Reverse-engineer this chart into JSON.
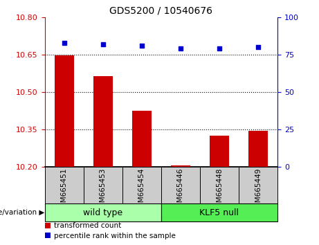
{
  "title": "GDS5200 / 10540676",
  "categories": [
    "GSM665451",
    "GSM665453",
    "GSM665454",
    "GSM665446",
    "GSM665448",
    "GSM665449"
  ],
  "bar_values": [
    10.648,
    10.565,
    10.425,
    10.205,
    10.325,
    10.345
  ],
  "scatter_values": [
    83,
    82,
    81,
    79,
    79,
    80
  ],
  "ylim_left": [
    10.2,
    10.8
  ],
  "ylim_right": [
    0,
    100
  ],
  "yticks_left": [
    10.2,
    10.35,
    10.5,
    10.65,
    10.8
  ],
  "yticks_right": [
    0,
    25,
    50,
    75,
    100
  ],
  "bar_color": "#cc0000",
  "scatter_color": "#0000cc",
  "bar_bottom": 10.2,
  "grid_values": [
    10.35,
    10.5,
    10.65
  ],
  "group1_label": "wild type",
  "group2_label": "KLF5 null",
  "group1_color": "#aaffaa",
  "group2_color": "#55ee55",
  "genotype_label": "genotype/variation",
  "legend_bar_label": "transformed count",
  "legend_scatter_label": "percentile rank within the sample",
  "bar_color_left": "#cc0000",
  "scatter_color_blue": "#0000cc",
  "tick_label_color_left": "#cc0000",
  "tick_label_color_right": "#0000cc",
  "xticklabel_bg": "#cccccc",
  "figsize": [
    4.61,
    3.54
  ],
  "dpi": 100
}
